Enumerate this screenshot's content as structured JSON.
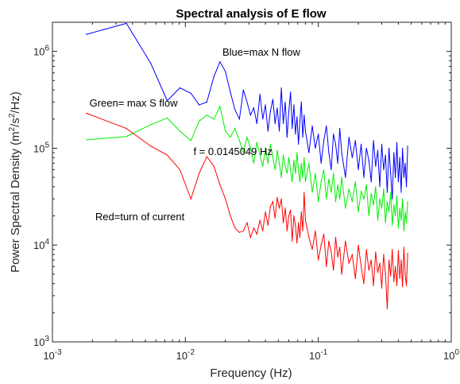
{
  "chart_data": {
    "type": "line",
    "title": "Spectral analysis of E flow",
    "xlabel": "Frequency (Hz)",
    "ylabel_parts": {
      "p1": "Power Spectral Density (m",
      "sup1": "2",
      "p2": "/s",
      "sup2": "2",
      "p3": "/Hz)"
    },
    "xscale": "log",
    "yscale": "log",
    "xlim": [
      0.001,
      1
    ],
    "ylim": [
      1000,
      2000000
    ],
    "grid": false,
    "x_ticks": [
      {
        "value": 0.001,
        "base": "10",
        "exp": "-3"
      },
      {
        "value": 0.01,
        "base": "10",
        "exp": "-2"
      },
      {
        "value": 0.1,
        "base": "10",
        "exp": "-1"
      },
      {
        "value": 1,
        "base": "10",
        "exp": "0"
      }
    ],
    "y_ticks": [
      {
        "value": 1000,
        "base": "10",
        "exp": "3"
      },
      {
        "value": 10000,
        "base": "10",
        "exp": "4"
      },
      {
        "value": 100000,
        "base": "10",
        "exp": "5"
      },
      {
        "value": 1000000,
        "base": "10",
        "exp": "6"
      }
    ],
    "annotations": [
      {
        "text": "Blue=max N flow",
        "x": 0.019,
        "y": 900000
      },
      {
        "text": "Green= max S flow",
        "x": 0.0019,
        "y": 270000
      },
      {
        "text": "f = 0.0145049 Hz",
        "x": 0.0115,
        "y": 85000
      },
      {
        "text": "Red=turn of current",
        "x": 0.0021,
        "y": 18000
      }
    ],
    "series": [
      {
        "key": "blue",
        "color": "#0000ff",
        "x": [
          0.0018,
          0.0036,
          0.0055,
          0.0073,
          0.0091,
          0.011,
          0.0127,
          0.0145,
          0.0164,
          0.0182,
          0.02,
          0.0218,
          0.0236,
          0.0255,
          0.0273,
          0.0291,
          0.0309,
          0.0327,
          0.0345,
          0.0364,
          0.0382,
          0.04,
          0.0418,
          0.0436,
          0.0455,
          0.0473,
          0.0491,
          0.0509,
          0.0527,
          0.0545,
          0.0564,
          0.0582,
          0.06,
          0.0618,
          0.0636,
          0.0655,
          0.0673,
          0.0691,
          0.0709,
          0.0727,
          0.0745,
          0.0764,
          0.0782,
          0.08,
          0.085,
          0.09,
          0.095,
          0.1,
          0.105,
          0.11,
          0.115,
          0.12,
          0.125,
          0.13,
          0.135,
          0.14,
          0.145,
          0.15,
          0.16,
          0.17,
          0.18,
          0.19,
          0.2,
          0.21,
          0.22,
          0.23,
          0.24,
          0.25,
          0.26,
          0.27,
          0.28,
          0.29,
          0.3,
          0.31,
          0.32,
          0.33,
          0.34,
          0.35,
          0.36,
          0.37,
          0.38,
          0.39,
          0.4,
          0.41,
          0.42,
          0.43,
          0.44,
          0.45,
          0.46,
          0.47
        ],
        "y": [
          1500000,
          1950000,
          750000,
          310000,
          420000,
          370000,
          280000,
          300000,
          550000,
          780000,
          620000,
          380000,
          250000,
          200000,
          400000,
          300000,
          220000,
          260000,
          180000,
          360000,
          200000,
          280000,
          150000,
          240000,
          320000,
          180000,
          260000,
          150000,
          420000,
          180000,
          300000,
          130000,
          240000,
          380000,
          160000,
          280000,
          140000,
          210000,
          110000,
          190000,
          300000,
          130000,
          220000,
          150000,
          90000,
          170000,
          100000,
          140000,
          70000,
          120000,
          170000,
          90000,
          60000,
          140000,
          110000,
          70000,
          160000,
          90000,
          50000,
          130000,
          80000,
          120000,
          60000,
          110000,
          50000,
          100000,
          75000,
          45000,
          120000,
          65000,
          95000,
          40000,
          110000,
          60000,
          85000,
          35000,
          100000,
          55000,
          30000,
          90000,
          50000,
          115000,
          45000,
          80000,
          35000,
          100000,
          50000,
          70000,
          40000,
          105000
        ]
      },
      {
        "key": "green",
        "color": "#00ee00",
        "x": [
          0.0018,
          0.0036,
          0.0055,
          0.0073,
          0.0091,
          0.011,
          0.0127,
          0.0145,
          0.0164,
          0.0182,
          0.02,
          0.0218,
          0.0236,
          0.0255,
          0.0273,
          0.0291,
          0.0309,
          0.0327,
          0.0345,
          0.0364,
          0.0382,
          0.04,
          0.0418,
          0.0436,
          0.0455,
          0.0473,
          0.0491,
          0.0509,
          0.0527,
          0.0545,
          0.0564,
          0.0582,
          0.06,
          0.0618,
          0.0636,
          0.0655,
          0.0673,
          0.0691,
          0.0709,
          0.0727,
          0.0745,
          0.0764,
          0.0782,
          0.08,
          0.085,
          0.09,
          0.095,
          0.1,
          0.105,
          0.11,
          0.115,
          0.12,
          0.125,
          0.13,
          0.135,
          0.14,
          0.145,
          0.15,
          0.16,
          0.17,
          0.18,
          0.19,
          0.2,
          0.21,
          0.22,
          0.23,
          0.24,
          0.25,
          0.26,
          0.27,
          0.28,
          0.29,
          0.3,
          0.31,
          0.32,
          0.33,
          0.34,
          0.35,
          0.36,
          0.37,
          0.38,
          0.39,
          0.4,
          0.41,
          0.42,
          0.43,
          0.44,
          0.45,
          0.46,
          0.47
        ],
        "y": [
          122000,
          132000,
          175000,
          205000,
          150000,
          120000,
          190000,
          220000,
          200000,
          270000,
          150000,
          130000,
          160000,
          120000,
          90000,
          130000,
          100000,
          70000,
          115000,
          85000,
          65000,
          100000,
          70000,
          110000,
          80000,
          60000,
          95000,
          70000,
          50000,
          85000,
          65000,
          55000,
          80000,
          60000,
          45000,
          75000,
          55000,
          90000,
          60000,
          45000,
          70000,
          50000,
          80000,
          45000,
          70000,
          35000,
          55000,
          28000,
          45000,
          60000,
          30000,
          48000,
          35000,
          55000,
          28000,
          42000,
          30000,
          50000,
          24000,
          38000,
          28000,
          45000,
          22000,
          36000,
          30000,
          42000,
          20000,
          34000,
          26000,
          40000,
          18000,
          30000,
          24000,
          38000,
          17000,
          28000,
          22000,
          35000,
          16000,
          26000,
          20000,
          32000,
          15000,
          24000,
          18000,
          30000,
          14000,
          22000,
          17000,
          28000
        ]
      },
      {
        "key": "red",
        "color": "#ff0000",
        "x": [
          0.0018,
          0.0036,
          0.0055,
          0.0073,
          0.0091,
          0.011,
          0.0127,
          0.0145,
          0.0164,
          0.0182,
          0.02,
          0.0218,
          0.0236,
          0.0255,
          0.0273,
          0.0291,
          0.0309,
          0.0327,
          0.0345,
          0.0364,
          0.0382,
          0.04,
          0.0418,
          0.0436,
          0.0455,
          0.0473,
          0.0491,
          0.0509,
          0.0527,
          0.0545,
          0.0564,
          0.0582,
          0.06,
          0.0618,
          0.0636,
          0.0655,
          0.0673,
          0.0691,
          0.0709,
          0.0727,
          0.0745,
          0.0764,
          0.0782,
          0.08,
          0.085,
          0.09,
          0.095,
          0.1,
          0.105,
          0.11,
          0.115,
          0.12,
          0.125,
          0.13,
          0.135,
          0.14,
          0.145,
          0.15,
          0.16,
          0.17,
          0.18,
          0.19,
          0.2,
          0.21,
          0.22,
          0.23,
          0.24,
          0.25,
          0.26,
          0.27,
          0.28,
          0.29,
          0.3,
          0.31,
          0.32,
          0.33,
          0.34,
          0.35,
          0.36,
          0.37,
          0.38,
          0.39,
          0.4,
          0.41,
          0.42,
          0.43,
          0.44,
          0.45,
          0.46,
          0.47
        ],
        "y": [
          230000,
          160000,
          105000,
          85000,
          60000,
          30000,
          55000,
          82000,
          65000,
          42000,
          30000,
          20000,
          15000,
          13500,
          14000,
          17000,
          12000,
          15000,
          13000,
          18000,
          14000,
          22000,
          16000,
          25000,
          28000,
          19000,
          31000,
          24000,
          30000,
          17000,
          24000,
          14000,
          20000,
          23000,
          11000,
          20000,
          16000,
          10500,
          17000,
          12000,
          22000,
          14000,
          35000,
          18000,
          12000,
          9000,
          14000,
          7000,
          10000,
          13000,
          6000,
          11000,
          8500,
          5500,
          12000,
          7500,
          9500,
          5000,
          11000,
          6500,
          8000,
          4500,
          10000,
          6000,
          4000,
          9000,
          5500,
          7000,
          3800,
          8500,
          5200,
          6500,
          3600,
          8000,
          5000,
          2200,
          7000,
          4800,
          9000,
          4200,
          6000,
          3800,
          8800,
          4500,
          7000,
          3700,
          9500,
          5000,
          3800,
          8200
        ]
      }
    ]
  }
}
